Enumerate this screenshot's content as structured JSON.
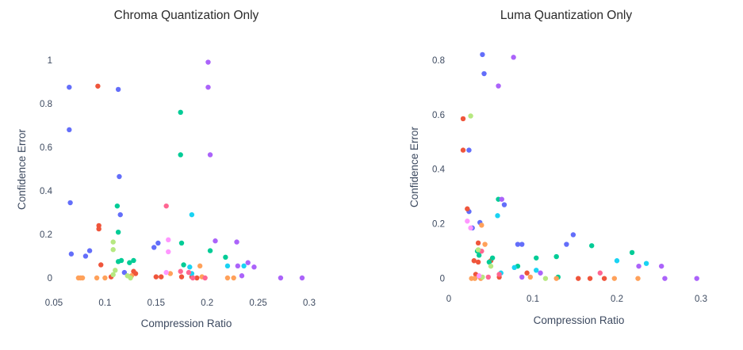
{
  "palette": [
    "#636efa",
    "#ef553b",
    "#00cc96",
    "#ab63fa",
    "#ffa15a",
    "#19d3f3",
    "#ff6692",
    "#b6e880",
    "#ff97ff",
    "#fecb52"
  ],
  "chart_data": [
    {
      "type": "scatter",
      "title": "Chroma Quantization Only",
      "xlabel": "Compression Ratio",
      "ylabel": "Confidence Error",
      "xlim": [
        0.05,
        0.3
      ],
      "ylim": [
        -0.04,
        1.05
      ],
      "xticks": [
        0.05,
        0.1,
        0.15,
        0.2,
        0.25,
        0.3
      ],
      "xtick_labels": [
        "0.05",
        "0.1",
        "0.15",
        "0.2",
        "0.25",
        "0.3"
      ],
      "yticks": [
        0,
        0.2,
        0.4,
        0.6,
        0.8,
        1
      ],
      "ytick_labels": [
        "0",
        "0.2",
        "0.4",
        "0.6",
        "0.8",
        "1"
      ],
      "grid": false,
      "legend": "none",
      "points": [
        {
          "x": 0.065,
          "y": 0.875,
          "c": 0
        },
        {
          "x": 0.065,
          "y": 0.68,
          "c": 0
        },
        {
          "x": 0.066,
          "y": 0.345,
          "c": 0
        },
        {
          "x": 0.067,
          "y": 0.11,
          "c": 0
        },
        {
          "x": 0.081,
          "y": 0.1,
          "c": 0
        },
        {
          "x": 0.085,
          "y": 0.125,
          "c": 0
        },
        {
          "x": 0.113,
          "y": 0.865,
          "c": 0
        },
        {
          "x": 0.114,
          "y": 0.465,
          "c": 0
        },
        {
          "x": 0.115,
          "y": 0.29,
          "c": 0
        },
        {
          "x": 0.119,
          "y": 0.025,
          "c": 0
        },
        {
          "x": 0.148,
          "y": 0.14,
          "c": 0
        },
        {
          "x": 0.152,
          "y": 0.16,
          "c": 0
        },
        {
          "x": 0.093,
          "y": 0.88,
          "c": 1
        },
        {
          "x": 0.094,
          "y": 0.24,
          "c": 1
        },
        {
          "x": 0.094,
          "y": 0.225,
          "c": 1
        },
        {
          "x": 0.096,
          "y": 0.06,
          "c": 1
        },
        {
          "x": 0.106,
          "y": 0.005,
          "c": 1
        },
        {
          "x": 0.128,
          "y": 0.03,
          "c": 1
        },
        {
          "x": 0.13,
          "y": 0.02,
          "c": 1
        },
        {
          "x": 0.15,
          "y": 0.005,
          "c": 1
        },
        {
          "x": 0.155,
          "y": 0.005,
          "c": 1
        },
        {
          "x": 0.175,
          "y": 0.005,
          "c": 1
        },
        {
          "x": 0.185,
          "y": 0.005,
          "c": 1
        },
        {
          "x": 0.19,
          "y": 0.0,
          "c": 1
        },
        {
          "x": 0.112,
          "y": 0.33,
          "c": 2
        },
        {
          "x": 0.113,
          "y": 0.21,
          "c": 2
        },
        {
          "x": 0.113,
          "y": 0.075,
          "c": 2
        },
        {
          "x": 0.116,
          "y": 0.08,
          "c": 2
        },
        {
          "x": 0.124,
          "y": 0.07,
          "c": 2
        },
        {
          "x": 0.128,
          "y": 0.08,
          "c": 2
        },
        {
          "x": 0.174,
          "y": 0.76,
          "c": 2
        },
        {
          "x": 0.174,
          "y": 0.565,
          "c": 2
        },
        {
          "x": 0.175,
          "y": 0.16,
          "c": 2
        },
        {
          "x": 0.203,
          "y": 0.125,
          "c": 2
        },
        {
          "x": 0.218,
          "y": 0.095,
          "c": 2
        },
        {
          "x": 0.177,
          "y": 0.06,
          "c": 2
        },
        {
          "x": 0.201,
          "y": 0.99,
          "c": 3
        },
        {
          "x": 0.201,
          "y": 0.875,
          "c": 3
        },
        {
          "x": 0.203,
          "y": 0.565,
          "c": 3
        },
        {
          "x": 0.208,
          "y": 0.17,
          "c": 3
        },
        {
          "x": 0.229,
          "y": 0.165,
          "c": 3
        },
        {
          "x": 0.23,
          "y": 0.055,
          "c": 3
        },
        {
          "x": 0.24,
          "y": 0.07,
          "c": 3
        },
        {
          "x": 0.246,
          "y": 0.05,
          "c": 3
        },
        {
          "x": 0.234,
          "y": 0.01,
          "c": 3
        },
        {
          "x": 0.272,
          "y": 0.0,
          "c": 3
        },
        {
          "x": 0.293,
          "y": 0.0,
          "c": 3
        },
        {
          "x": 0.074,
          "y": 0.0,
          "c": 4
        },
        {
          "x": 0.076,
          "y": 0.0,
          "c": 4
        },
        {
          "x": 0.078,
          "y": 0.0,
          "c": 4
        },
        {
          "x": 0.092,
          "y": 0.0,
          "c": 4
        },
        {
          "x": 0.1,
          "y": 0.0,
          "c": 4
        },
        {
          "x": 0.126,
          "y": 0.01,
          "c": 4
        },
        {
          "x": 0.164,
          "y": 0.02,
          "c": 4
        },
        {
          "x": 0.193,
          "y": 0.055,
          "c": 4
        },
        {
          "x": 0.195,
          "y": 0.005,
          "c": 4
        },
        {
          "x": 0.22,
          "y": 0.0,
          "c": 4
        },
        {
          "x": 0.226,
          "y": 0.0,
          "c": 4
        },
        {
          "x": 0.185,
          "y": 0.29,
          "c": 5
        },
        {
          "x": 0.183,
          "y": 0.05,
          "c": 5
        },
        {
          "x": 0.185,
          "y": 0.02,
          "c": 5
        },
        {
          "x": 0.22,
          "y": 0.055,
          "c": 5
        },
        {
          "x": 0.236,
          "y": 0.055,
          "c": 5
        },
        {
          "x": 0.16,
          "y": 0.33,
          "c": 6
        },
        {
          "x": 0.174,
          "y": 0.03,
          "c": 6
        },
        {
          "x": 0.182,
          "y": 0.025,
          "c": 6
        },
        {
          "x": 0.186,
          "y": 0.0,
          "c": 6
        },
        {
          "x": 0.198,
          "y": 0.0,
          "c": 6
        },
        {
          "x": 0.108,
          "y": 0.165,
          "c": 7
        },
        {
          "x": 0.108,
          "y": 0.13,
          "c": 7
        },
        {
          "x": 0.11,
          "y": 0.035,
          "c": 7
        },
        {
          "x": 0.108,
          "y": 0.015,
          "c": 7
        },
        {
          "x": 0.122,
          "y": 0.01,
          "c": 7
        },
        {
          "x": 0.125,
          "y": 0.0,
          "c": 7
        },
        {
          "x": 0.162,
          "y": 0.175,
          "c": 8
        },
        {
          "x": 0.162,
          "y": 0.12,
          "c": 8
        },
        {
          "x": 0.16,
          "y": 0.025,
          "c": 8
        }
      ]
    },
    {
      "type": "scatter",
      "title": "Luma Quantization Only",
      "xlabel": "Compression Ratio",
      "ylabel": "Confidence Error",
      "xlim": [
        0.0,
        0.3
      ],
      "ylim": [
        -0.03,
        0.84
      ],
      "xticks": [
        0,
        0.1,
        0.2,
        0.3
      ],
      "xtick_labels": [
        "0",
        "0.1",
        "0.2",
        "0.3"
      ],
      "yticks": [
        0,
        0.2,
        0.4,
        0.6,
        0.8
      ],
      "ytick_labels": [
        "0",
        "0.2",
        "0.4",
        "0.6",
        "0.8"
      ],
      "grid": false,
      "legend": "none",
      "points": [
        {
          "x": 0.04,
          "y": 0.82,
          "c": 0
        },
        {
          "x": 0.042,
          "y": 0.75,
          "c": 0
        },
        {
          "x": 0.024,
          "y": 0.47,
          "c": 0
        },
        {
          "x": 0.024,
          "y": 0.245,
          "c": 0
        },
        {
          "x": 0.037,
          "y": 0.205,
          "c": 0
        },
        {
          "x": 0.028,
          "y": 0.185,
          "c": 0
        },
        {
          "x": 0.066,
          "y": 0.27,
          "c": 0
        },
        {
          "x": 0.082,
          "y": 0.125,
          "c": 0
        },
        {
          "x": 0.087,
          "y": 0.125,
          "c": 0
        },
        {
          "x": 0.14,
          "y": 0.125,
          "c": 0
        },
        {
          "x": 0.148,
          "y": 0.16,
          "c": 0
        },
        {
          "x": 0.017,
          "y": 0.585,
          "c": 1
        },
        {
          "x": 0.017,
          "y": 0.47,
          "c": 1
        },
        {
          "x": 0.022,
          "y": 0.255,
          "c": 1
        },
        {
          "x": 0.035,
          "y": 0.13,
          "c": 1
        },
        {
          "x": 0.035,
          "y": 0.06,
          "c": 1
        },
        {
          "x": 0.03,
          "y": 0.065,
          "c": 1
        },
        {
          "x": 0.05,
          "y": 0.065,
          "c": 1
        },
        {
          "x": 0.06,
          "y": 0.005,
          "c": 1
        },
        {
          "x": 0.093,
          "y": 0.02,
          "c": 1
        },
        {
          "x": 0.154,
          "y": 0.0,
          "c": 1
        },
        {
          "x": 0.168,
          "y": 0.0,
          "c": 1
        },
        {
          "x": 0.185,
          "y": 0.0,
          "c": 1
        },
        {
          "x": 0.032,
          "y": 0.015,
          "c": 1
        },
        {
          "x": 0.059,
          "y": 0.29,
          "c": 2
        },
        {
          "x": 0.034,
          "y": 0.1,
          "c": 2
        },
        {
          "x": 0.036,
          "y": 0.085,
          "c": 2
        },
        {
          "x": 0.048,
          "y": 0.06,
          "c": 2
        },
        {
          "x": 0.052,
          "y": 0.075,
          "c": 2
        },
        {
          "x": 0.082,
          "y": 0.045,
          "c": 2
        },
        {
          "x": 0.104,
          "y": 0.075,
          "c": 2
        },
        {
          "x": 0.128,
          "y": 0.08,
          "c": 2
        },
        {
          "x": 0.17,
          "y": 0.12,
          "c": 2
        },
        {
          "x": 0.218,
          "y": 0.095,
          "c": 2
        },
        {
          "x": 0.13,
          "y": 0.005,
          "c": 2
        },
        {
          "x": 0.077,
          "y": 0.81,
          "c": 3
        },
        {
          "x": 0.059,
          "y": 0.705,
          "c": 3
        },
        {
          "x": 0.063,
          "y": 0.29,
          "c": 3
        },
        {
          "x": 0.087,
          "y": 0.005,
          "c": 3
        },
        {
          "x": 0.109,
          "y": 0.02,
          "c": 3
        },
        {
          "x": 0.226,
          "y": 0.045,
          "c": 3
        },
        {
          "x": 0.253,
          "y": 0.045,
          "c": 3
        },
        {
          "x": 0.257,
          "y": 0.0,
          "c": 3
        },
        {
          "x": 0.295,
          "y": 0.0,
          "c": 3
        },
        {
          "x": 0.037,
          "y": 0.005,
          "c": 3
        },
        {
          "x": 0.039,
          "y": 0.195,
          "c": 4
        },
        {
          "x": 0.043,
          "y": 0.125,
          "c": 4
        },
        {
          "x": 0.027,
          "y": 0.0,
          "c": 4
        },
        {
          "x": 0.031,
          "y": 0.0,
          "c": 4
        },
        {
          "x": 0.038,
          "y": 0.0,
          "c": 4
        },
        {
          "x": 0.097,
          "y": 0.005,
          "c": 4
        },
        {
          "x": 0.128,
          "y": 0.0,
          "c": 4
        },
        {
          "x": 0.197,
          "y": 0.0,
          "c": 4
        },
        {
          "x": 0.225,
          "y": 0.0,
          "c": 4
        },
        {
          "x": 0.058,
          "y": 0.23,
          "c": 5
        },
        {
          "x": 0.062,
          "y": 0.02,
          "c": 5
        },
        {
          "x": 0.078,
          "y": 0.04,
          "c": 5
        },
        {
          "x": 0.104,
          "y": 0.03,
          "c": 5
        },
        {
          "x": 0.2,
          "y": 0.065,
          "c": 5
        },
        {
          "x": 0.235,
          "y": 0.055,
          "c": 5
        },
        {
          "x": 0.039,
          "y": 0.1,
          "c": 6
        },
        {
          "x": 0.047,
          "y": 0.005,
          "c": 6
        },
        {
          "x": 0.06,
          "y": 0.015,
          "c": 6
        },
        {
          "x": 0.18,
          "y": 0.02,
          "c": 6
        },
        {
          "x": 0.026,
          "y": 0.595,
          "c": 7
        },
        {
          "x": 0.035,
          "y": 0.105,
          "c": 7
        },
        {
          "x": 0.05,
          "y": 0.045,
          "c": 7
        },
        {
          "x": 0.115,
          "y": 0.0,
          "c": 7
        },
        {
          "x": 0.04,
          "y": 0.005,
          "c": 7
        },
        {
          "x": 0.022,
          "y": 0.21,
          "c": 8
        },
        {
          "x": 0.026,
          "y": 0.185,
          "c": 8
        },
        {
          "x": 0.036,
          "y": 0.01,
          "c": 8
        }
      ]
    }
  ]
}
